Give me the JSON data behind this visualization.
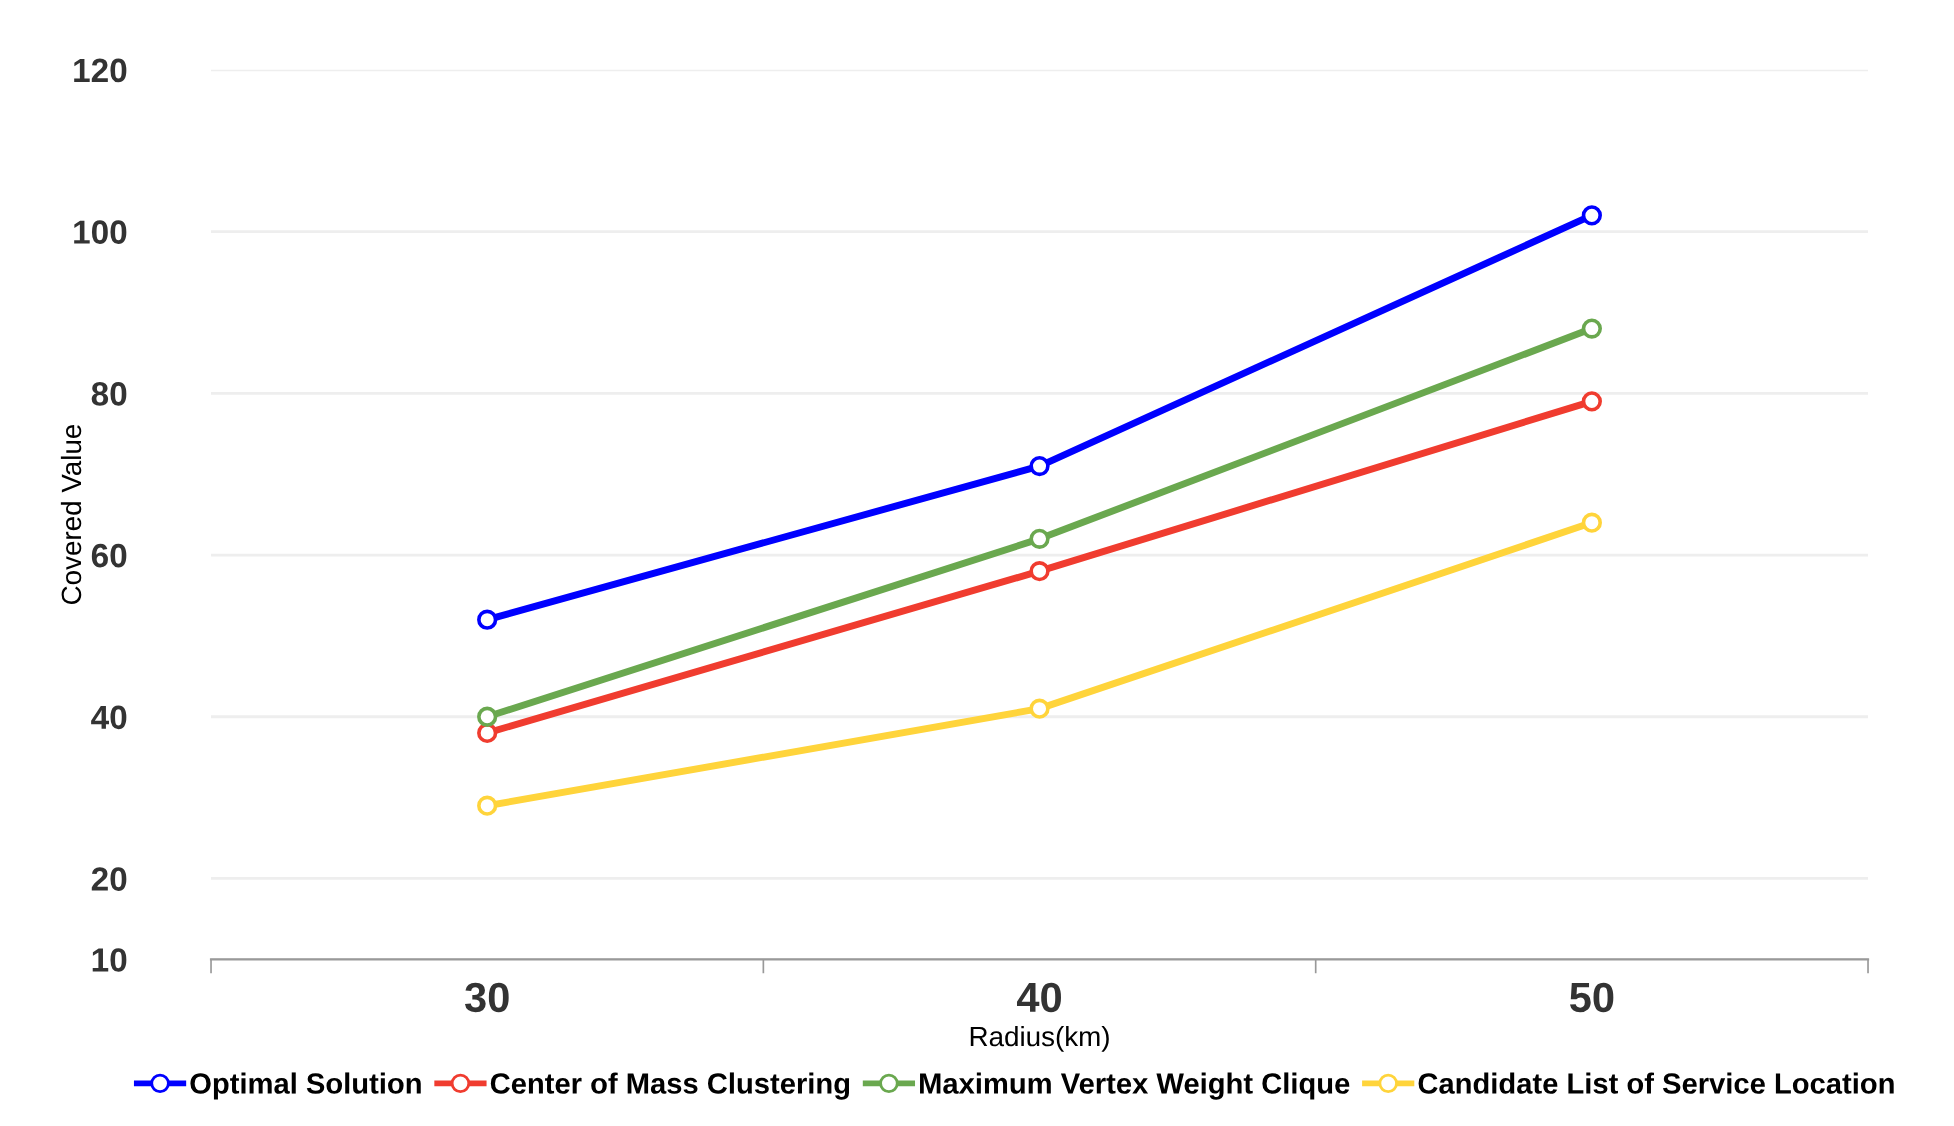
{
  "chart_data": {
    "type": "line",
    "xlabel": "Radius(km)",
    "ylabel": "Covered Value",
    "categories": [
      "30",
      "40",
      "50"
    ],
    "series": [
      {
        "name": "Optimal Solution",
        "color": "#0000ff",
        "values": [
          52,
          71,
          102
        ]
      },
      {
        "name": "Center of Mass Clustering",
        "color": "#f03c2f",
        "values": [
          38,
          58,
          79
        ]
      },
      {
        "name": "Maximum Vertex Weight Clique",
        "color": "#6aa84f",
        "values": [
          40,
          62,
          88
        ]
      },
      {
        "name": "Candidate List of Service Location",
        "color": "#ffd43b",
        "values": [
          29,
          41,
          64
        ]
      }
    ],
    "ylim": [
      10,
      120
    ],
    "yticks": [
      10,
      20,
      40,
      60,
      80,
      100,
      120
    ],
    "grid": "y",
    "legend": "bottom",
    "marker": "circle",
    "line_style": "solid"
  }
}
